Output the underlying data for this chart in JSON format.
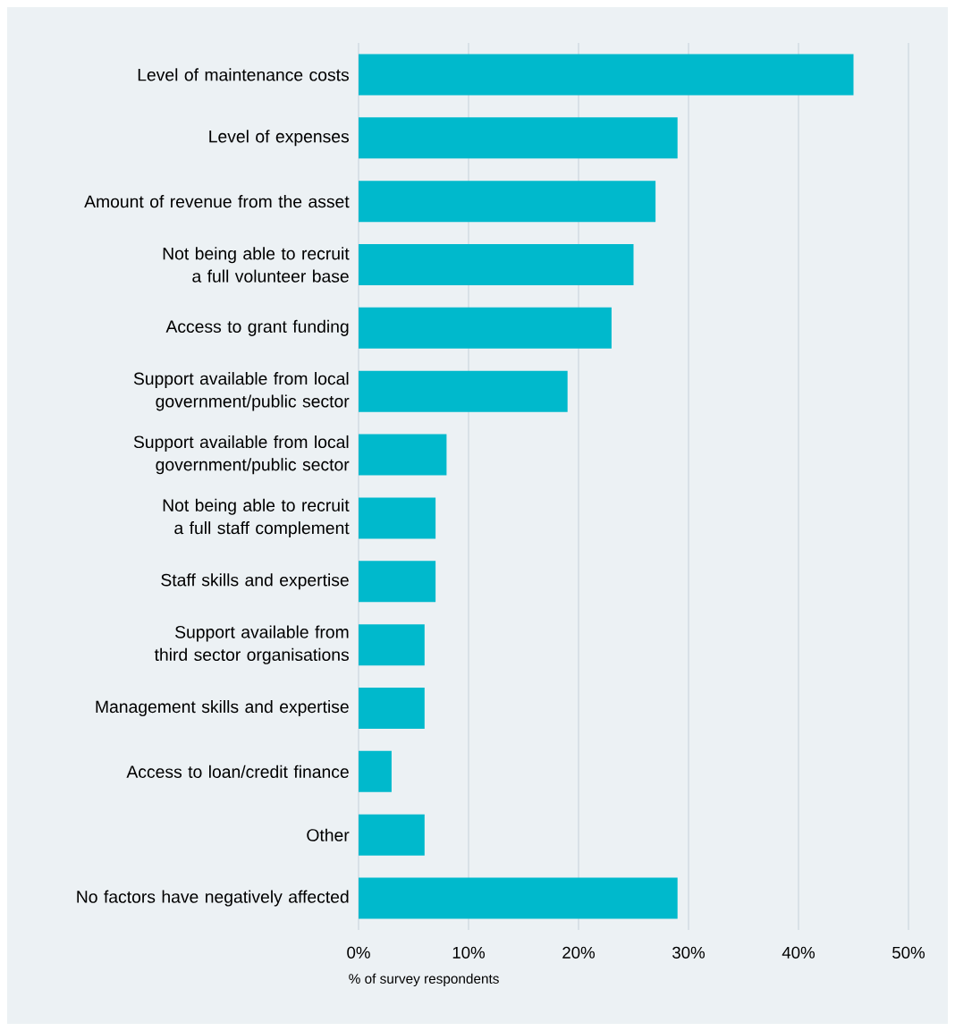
{
  "chart_data": {
    "type": "bar",
    "orientation": "horizontal",
    "xlabel": "% of survey respondents",
    "categories": [
      "Level of maintenance costs",
      "Level of expenses",
      "Amount of revenue from the asset",
      "Not being able to recruit a full volunteer base",
      "Access to grant funding",
      "Support available from local government/public sector",
      "Support available from local government/public sector",
      "Not being able to recruit a full staff complement",
      "Staff skills and expertise",
      "Support available from third sector organisations",
      "Management skills and expertise",
      "Access to loan/credit finance",
      "Other",
      "No factors have negatively affected"
    ],
    "values": [
      45,
      29,
      27,
      25,
      23,
      19,
      8,
      7,
      7,
      6,
      6,
      3,
      6,
      29
    ],
    "color": "#00b9cc",
    "xlim": [
      0,
      50
    ],
    "xticks": [
      {
        "value": 0,
        "label": "0%"
      },
      {
        "value": 10,
        "label": "10%"
      },
      {
        "value": 20,
        "label": "20%"
      },
      {
        "value": 30,
        "label": "30%"
      },
      {
        "value": 40,
        "label": "40%"
      },
      {
        "value": 50,
        "label": "50%"
      }
    ],
    "grid": "x"
  }
}
